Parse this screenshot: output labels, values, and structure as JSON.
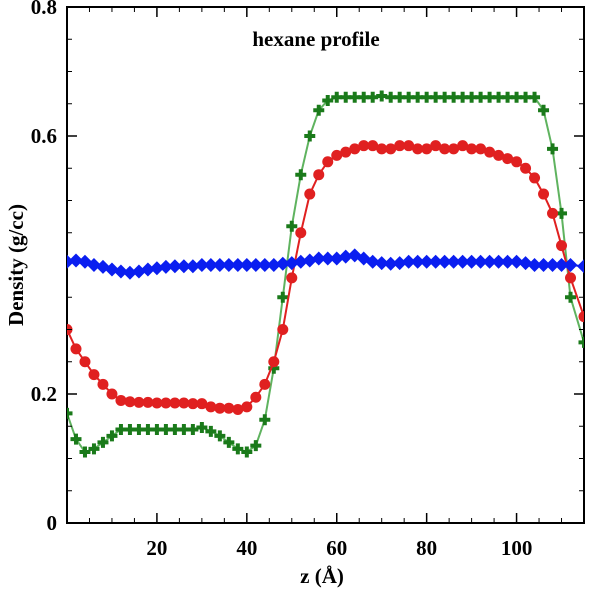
{
  "chart_data": {
    "type": "line",
    "title": "hexane profile",
    "xlabel": "z (Å)",
    "ylabel": "Density (g/cc)",
    "xlim": [
      0,
      115
    ],
    "ylim": [
      0,
      0.8
    ],
    "xticks": [
      20,
      40,
      60,
      80,
      100
    ],
    "yticks": [
      0,
      0.2,
      0.6,
      0.8
    ],
    "ytick_labels": [
      "0",
      "0.2",
      "0.6",
      "0.8"
    ],
    "grid": false,
    "legend": "none",
    "series": [
      {
        "color": "#2a9a2a",
        "marker": "plus",
        "x": [
          0,
          2,
          4,
          6,
          8,
          10,
          12,
          14,
          16,
          18,
          20,
          22,
          24,
          26,
          28,
          30,
          32,
          34,
          36,
          38,
          40,
          42,
          44,
          46,
          48,
          50,
          52,
          54,
          56,
          58,
          60,
          62,
          64,
          66,
          68,
          70,
          72,
          74,
          76,
          78,
          80,
          82,
          84,
          86,
          88,
          90,
          92,
          94,
          96,
          98,
          100,
          102,
          104,
          106,
          108,
          110,
          112,
          115
        ],
        "y": [
          0.17,
          0.13,
          0.11,
          0.115,
          0.125,
          0.135,
          0.145,
          0.145,
          0.145,
          0.145,
          0.145,
          0.145,
          0.145,
          0.145,
          0.145,
          0.148,
          0.142,
          0.135,
          0.125,
          0.115,
          0.11,
          0.12,
          0.16,
          0.24,
          0.35,
          0.46,
          0.54,
          0.6,
          0.64,
          0.655,
          0.66,
          0.66,
          0.66,
          0.66,
          0.66,
          0.662,
          0.66,
          0.66,
          0.66,
          0.66,
          0.66,
          0.66,
          0.66,
          0.66,
          0.66,
          0.66,
          0.66,
          0.66,
          0.66,
          0.66,
          0.66,
          0.66,
          0.66,
          0.64,
          0.58,
          0.48,
          0.35,
          0.28
        ]
      },
      {
        "color": "#e02020",
        "marker": "circle",
        "x": [
          0,
          2,
          4,
          6,
          8,
          10,
          12,
          14,
          16,
          18,
          20,
          22,
          24,
          26,
          28,
          30,
          32,
          34,
          36,
          38,
          40,
          42,
          44,
          46,
          48,
          50,
          52,
          54,
          56,
          58,
          60,
          62,
          64,
          66,
          68,
          70,
          72,
          74,
          76,
          78,
          80,
          82,
          84,
          86,
          88,
          90,
          92,
          94,
          96,
          98,
          100,
          102,
          104,
          106,
          108,
          110,
          112,
          115
        ],
        "y": [
          0.3,
          0.27,
          0.25,
          0.23,
          0.215,
          0.2,
          0.19,
          0.188,
          0.187,
          0.187,
          0.186,
          0.186,
          0.186,
          0.186,
          0.185,
          0.185,
          0.18,
          0.178,
          0.178,
          0.176,
          0.18,
          0.195,
          0.215,
          0.25,
          0.3,
          0.38,
          0.45,
          0.51,
          0.54,
          0.56,
          0.57,
          0.575,
          0.58,
          0.585,
          0.585,
          0.58,
          0.58,
          0.585,
          0.585,
          0.58,
          0.58,
          0.585,
          0.58,
          0.58,
          0.585,
          0.58,
          0.58,
          0.575,
          0.57,
          0.565,
          0.56,
          0.55,
          0.535,
          0.51,
          0.48,
          0.43,
          0.38,
          0.32
        ]
      },
      {
        "color": "#0a1ef0",
        "marker": "diamond",
        "x": [
          0,
          2,
          4,
          6,
          8,
          10,
          12,
          14,
          16,
          18,
          20,
          22,
          24,
          26,
          28,
          30,
          32,
          34,
          36,
          38,
          40,
          42,
          44,
          46,
          48,
          50,
          52,
          54,
          56,
          58,
          60,
          62,
          64,
          66,
          68,
          70,
          72,
          74,
          76,
          78,
          80,
          82,
          84,
          86,
          88,
          90,
          92,
          94,
          96,
          98,
          100,
          102,
          104,
          106,
          108,
          110,
          112,
          115
        ],
        "y": [
          0.405,
          0.407,
          0.405,
          0.4,
          0.397,
          0.393,
          0.39,
          0.388,
          0.39,
          0.393,
          0.395,
          0.397,
          0.398,
          0.398,
          0.398,
          0.4,
          0.4,
          0.4,
          0.4,
          0.4,
          0.4,
          0.4,
          0.4,
          0.4,
          0.402,
          0.403,
          0.405,
          0.407,
          0.41,
          0.41,
          0.41,
          0.413,
          0.415,
          0.41,
          0.405,
          0.403,
          0.402,
          0.403,
          0.405,
          0.405,
          0.405,
          0.405,
          0.405,
          0.405,
          0.405,
          0.405,
          0.405,
          0.405,
          0.405,
          0.405,
          0.405,
          0.403,
          0.4,
          0.4,
          0.4,
          0.4,
          0.4,
          0.398
        ]
      }
    ]
  }
}
